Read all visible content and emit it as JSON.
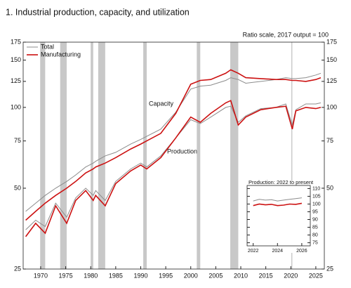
{
  "chart_data": [
    {
      "type": "line",
      "title": "1.  Industrial production, capacity, and utilization",
      "subtitle": "Ratio scale, 2017 output = 100",
      "annotations": [
        "Capacity",
        "Production"
      ],
      "log_scale": true,
      "legend": "top-left",
      "x": [
        1967,
        1969,
        1970.9,
        1973,
        1975.2,
        1977,
        1979,
        1980.5,
        1981,
        1982.9,
        1985,
        1988,
        1990,
        1991.2,
        1994,
        1997,
        2000,
        2001.9,
        2004,
        2007,
        2008,
        2009.5,
        2011,
        2014,
        2017,
        2019,
        2020.3,
        2021,
        2023,
        2025,
        2026
      ],
      "series": [
        {
          "name": "Total",
          "color": "#8c8c8c",
          "production": [
            35,
            38,
            36,
            44,
            39,
            46,
            50,
            47,
            49,
            45,
            53,
            59,
            62,
            60,
            66,
            77,
            90,
            87,
            92,
            100,
            101,
            88,
            93,
            99,
            100,
            103,
            86,
            98,
            103,
            103,
            104
          ],
          "capacity": [
            41,
            44,
            47,
            50,
            53,
            56,
            60,
            62,
            63,
            66,
            68,
            73,
            76,
            78,
            83,
            96,
            117,
            120,
            121,
            126,
            129,
            127,
            123,
            125,
            127,
            129,
            128,
            128,
            129,
            132,
            134
          ]
        },
        {
          "name": "Manufacturing",
          "color": "#cc1111",
          "production": [
            33,
            37,
            34,
            43,
            37,
            45,
            49,
            45,
            47,
            43,
            52,
            58,
            61,
            59,
            65,
            77,
            92,
            88,
            95,
            104,
            106,
            86,
            92,
            98,
            100,
            101,
            83,
            97,
            100,
            99,
            100
          ],
          "capacity": [
            38,
            41,
            44,
            47,
            50,
            53,
            57,
            59,
            60,
            62,
            65,
            70,
            73,
            75,
            80,
            95,
            122,
            126,
            127,
            134,
            138,
            134,
            129,
            128,
            127,
            127,
            126,
            126,
            125,
            127,
            129
          ]
        }
      ],
      "recessions": [
        [
          1969.9,
          1970.9
        ],
        [
          1973.9,
          1975.2
        ],
        [
          1980.0,
          1980.5
        ],
        [
          1981.5,
          1982.9
        ],
        [
          1990.5,
          1991.2
        ],
        [
          2001.2,
          2001.9
        ],
        [
          2007.9,
          2009.5
        ],
        [
          2020.1,
          2020.3
        ]
      ],
      "xlim": [
        1966.5,
        2026.7
      ],
      "xticks": [
        1970,
        1975,
        1980,
        1985,
        1990,
        1995,
        2000,
        2005,
        2010,
        2015,
        2020,
        2025
      ],
      "ylim": [
        25,
        175
      ],
      "yticks": [
        25,
        50,
        75,
        100,
        125,
        150,
        175
      ]
    },
    {
      "type": "line",
      "title": "Production: 2022 to present",
      "x": [
        2022,
        2022.5,
        2023,
        2023.5,
        2024,
        2024.5,
        2025,
        2025.5,
        2026
      ],
      "series": [
        {
          "name": "Total",
          "color": "#8c8c8c",
          "values": [
            102,
            103,
            102.5,
            102.8,
            102,
            102.5,
            103,
            103.5,
            104
          ]
        },
        {
          "name": "Manufacturing",
          "color": "#cc1111",
          "values": [
            99,
            100,
            99.5,
            99.8,
            99,
            99.3,
            100,
            99.8,
            100.5
          ]
        }
      ],
      "xlim": [
        2021.5,
        2026.7
      ],
      "xticks": [
        2022,
        2024,
        2026
      ],
      "ylim": [
        73,
        112
      ],
      "yticks": [
        75,
        80,
        85,
        90,
        95,
        100,
        105,
        110
      ]
    }
  ]
}
